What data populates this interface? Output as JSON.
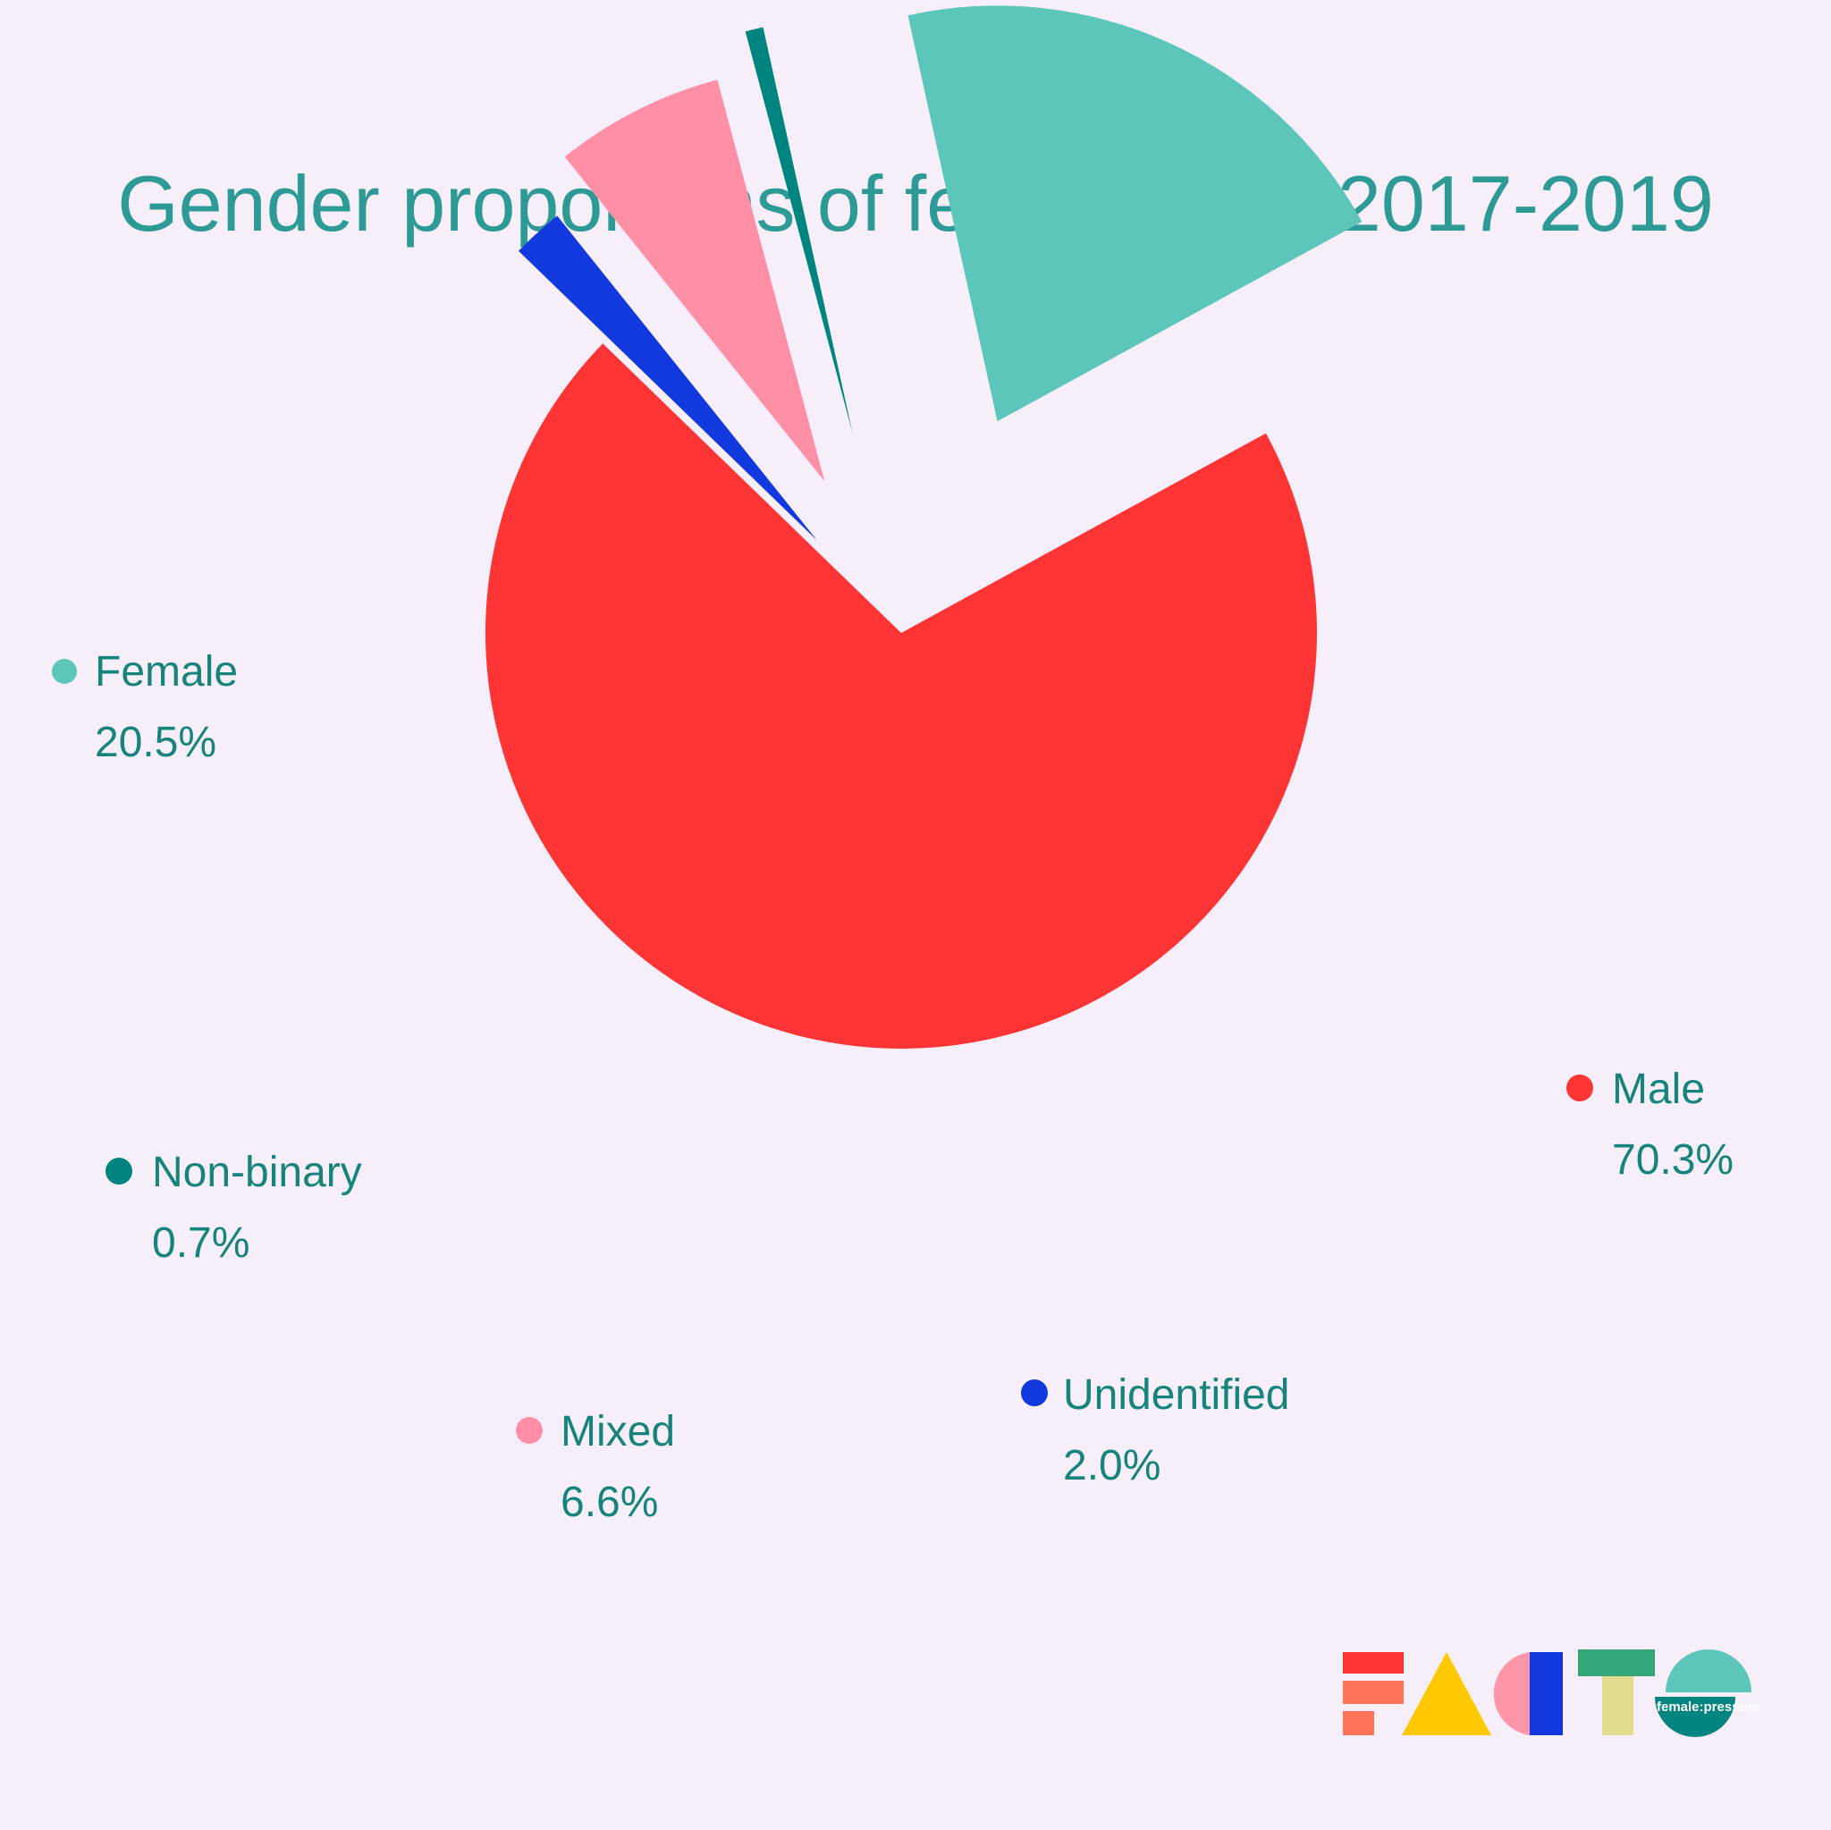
{
  "chart_data": {
    "type": "pie",
    "title": "Gender proportions of festival acts 2017-2019",
    "slices": [
      {
        "name": "Male",
        "value": 70.3,
        "label": "70.3%",
        "color": "#FF3434"
      },
      {
        "name": "Unidentified",
        "value": 2.0,
        "label": "2.0%",
        "color": "#1239DD"
      },
      {
        "name": "Mixed",
        "value": 6.6,
        "label": "6.6%",
        "color": "#FF8FA6"
      },
      {
        "name": "Non-binary",
        "value": 0.7,
        "label": "0.7%",
        "color": "#008480"
      },
      {
        "name": "Female",
        "value": 20.5,
        "label": "20.5%",
        "color": "#5DC6BA"
      }
    ],
    "legend_placement": "beside each slice",
    "exploded": true
  },
  "logo": {
    "name": "facts-logo",
    "text": "female:pressure",
    "colors": [
      "#FF3434",
      "#FF7458",
      "#FFC800",
      "#FF95A8",
      "#1239DD",
      "#35A57A",
      "#E2DB8E",
      "#5DC6BA",
      "#008480"
    ]
  },
  "colors": {
    "background": "#F6EFF9",
    "title": "#2E9A96",
    "label_text": "#16837D"
  }
}
